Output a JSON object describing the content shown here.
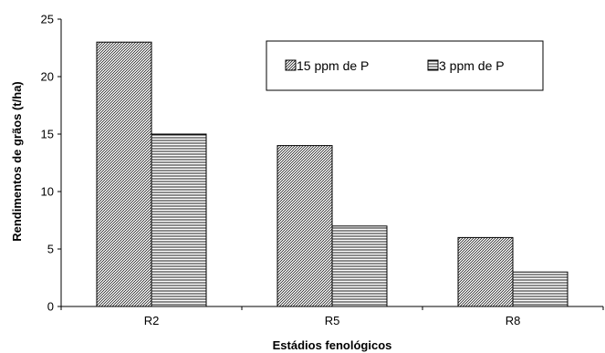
{
  "chart_data": {
    "type": "bar",
    "title": "",
    "xlabel": "Estádios fenológicos",
    "ylabel": "Rendimentos de grãos (t/ha)",
    "categories": [
      "R2",
      "R5",
      "R8"
    ],
    "ylim": [
      0,
      25
    ],
    "yticks": [
      0,
      5,
      10,
      15,
      20,
      25
    ],
    "grid": false,
    "legend_position": "top-right",
    "series": [
      {
        "name": "15 ppm de P",
        "values": [
          23,
          14,
          6
        ],
        "pattern": "diagonal-hatch",
        "color": "#000000"
      },
      {
        "name": "3 ppm de P",
        "values": [
          15,
          7,
          3
        ],
        "pattern": "horizontal-lines",
        "color": "#000000"
      }
    ]
  }
}
